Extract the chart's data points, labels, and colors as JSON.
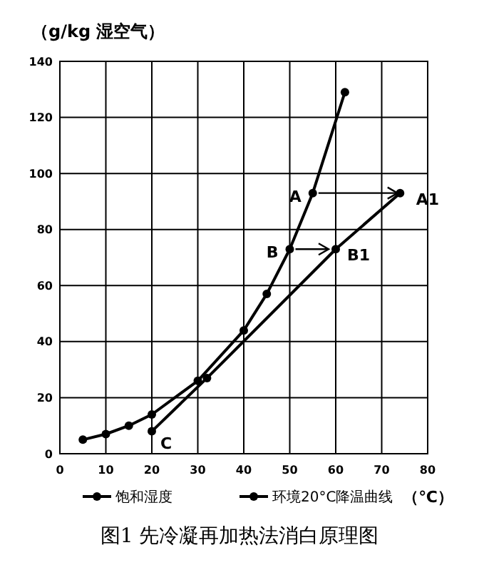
{
  "chart_data": {
    "type": "line",
    "title": "图1 先冷凝再加热法消白原理图",
    "xlabel": "（℃）",
    "ylabel": "（g/kg 湿空气）",
    "xlim": [
      0,
      80
    ],
    "xticks": [
      0,
      10,
      20,
      30,
      40,
      50,
      60,
      70,
      80
    ],
    "ylim": [
      0,
      140
    ],
    "yticks": [
      0,
      20,
      40,
      60,
      80,
      100,
      120,
      140
    ],
    "grid": true,
    "legend": "bottom",
    "marker": "circle",
    "line_style": "solid",
    "series": [
      {
        "name": "饱和湿度",
        "color": "#000000",
        "x": [
          5,
          10,
          15,
          20,
          30,
          40,
          45,
          50,
          55,
          62
        ],
        "values": [
          5,
          7,
          10,
          14,
          26,
          44,
          57,
          73,
          93,
          129
        ]
      },
      {
        "name": "环境20°C降温曲线",
        "color": "#000000",
        "x": [
          20,
          32,
          60,
          74
        ],
        "values": [
          8,
          27,
          73,
          93
        ]
      }
    ],
    "annotations": [
      {
        "text": "A",
        "x": 55,
        "y": 93
      },
      {
        "text": "A1",
        "x": 75,
        "y": 93
      },
      {
        "text": "B",
        "x": 50,
        "y": 73
      },
      {
        "text": "B1",
        "x": 60,
        "y": 73
      },
      {
        "text": "C",
        "x": 20,
        "y": 8
      }
    ]
  }
}
